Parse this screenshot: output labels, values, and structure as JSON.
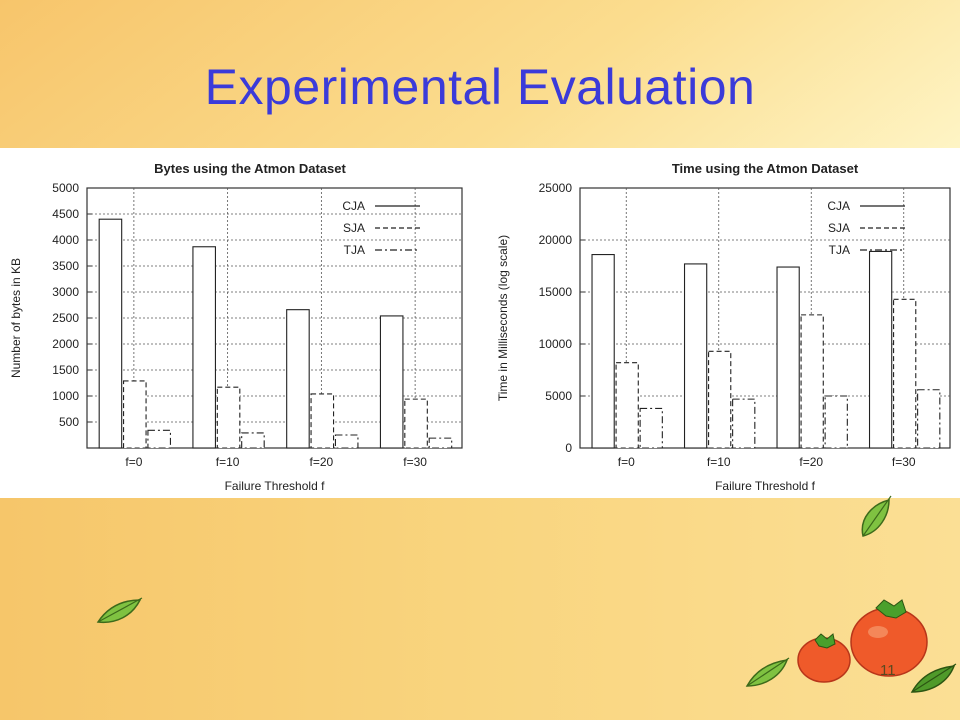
{
  "slide": {
    "title": "Experimental Evaluation",
    "page_number": "11"
  },
  "chart_data": [
    {
      "type": "bar",
      "title": "Bytes using the Atmon Dataset",
      "xlabel": "Failure Threshold f",
      "ylabel": "Number of bytes in KB",
      "categories": [
        "f=0",
        "f=10",
        "f=20",
        "f=30"
      ],
      "ylim": [
        0,
        5000
      ],
      "yticks": [
        500,
        1000,
        1500,
        2000,
        2500,
        3000,
        3500,
        4000,
        4500,
        5000
      ],
      "grid": true,
      "legend_position": "top-right",
      "series": [
        {
          "name": "CJA",
          "values": [
            4400,
            3870,
            2660,
            2540
          ]
        },
        {
          "name": "SJA",
          "values": [
            1290,
            1170,
            1040,
            940
          ]
        },
        {
          "name": "TJA",
          "values": [
            340,
            290,
            250,
            190
          ]
        }
      ]
    },
    {
      "type": "bar",
      "title": "Time using the Atmon Dataset",
      "xlabel": "Failure Threshold f",
      "ylabel": "Time in Milliseconds (log scale)",
      "categories": [
        "f=0",
        "f=10",
        "f=20",
        "f=30"
      ],
      "ylim": [
        0,
        25000
      ],
      "yticks": [
        0,
        5000,
        10000,
        15000,
        20000,
        25000
      ],
      "grid": true,
      "legend_position": "top-right",
      "series": [
        {
          "name": "CJA",
          "values": [
            18600,
            17700,
            17400,
            18900
          ]
        },
        {
          "name": "SJA",
          "values": [
            8200,
            9300,
            12800,
            14300
          ]
        },
        {
          "name": "TJA",
          "values": [
            3800,
            4700,
            5000,
            5600
          ]
        }
      ]
    }
  ]
}
